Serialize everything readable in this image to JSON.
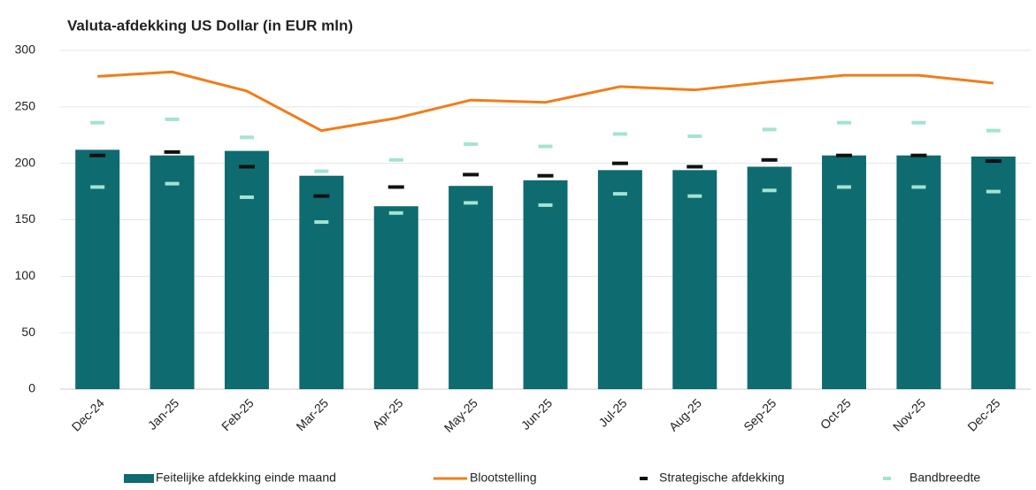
{
  "chart_data": {
    "type": "bar_line",
    "title": "Valuta-afdekking US Dollar (in EUR mln)",
    "categories": [
      "Dec-24",
      "Jan-25",
      "Feb-25",
      "Mar-25",
      "Apr-25",
      "May-25",
      "Jun-25",
      "Jul-25",
      "Aug-25",
      "Sep-25",
      "Oct-25",
      "Nov-25",
      "Dec-25"
    ],
    "series": [
      {
        "name": "Feitelijke afdekking einde maand",
        "kind": "bar",
        "color": "#0e6b70",
        "values": [
          212,
          207,
          211,
          189,
          162,
          180,
          185,
          194,
          194,
          197,
          207,
          207,
          206
        ]
      },
      {
        "name": "Blootstelling",
        "kind": "line",
        "color": "#f07d1a",
        "values": [
          277,
          281,
          264,
          229,
          240,
          256,
          254,
          268,
          265,
          272,
          278,
          278,
          271
        ]
      },
      {
        "name": "Strategische afdekking",
        "kind": "dash",
        "color": "#111111",
        "values": [
          207,
          210,
          197,
          171,
          179,
          190,
          189,
          200,
          197,
          203,
          207,
          207,
          202
        ]
      },
      {
        "name": "Bandbreedte",
        "kind": "band",
        "color": "#a3e3d3",
        "values_upper": [
          236,
          239,
          223,
          193,
          203,
          217,
          215,
          226,
          224,
          230,
          236,
          236,
          229
        ],
        "values_lower": [
          179,
          182,
          170,
          148,
          156,
          165,
          163,
          173,
          171,
          176,
          179,
          179,
          175
        ]
      }
    ],
    "ylim": [
      0,
      300
    ],
    "yticks": [
      0,
      50,
      100,
      150,
      200,
      250,
      300
    ],
    "grid": true
  }
}
